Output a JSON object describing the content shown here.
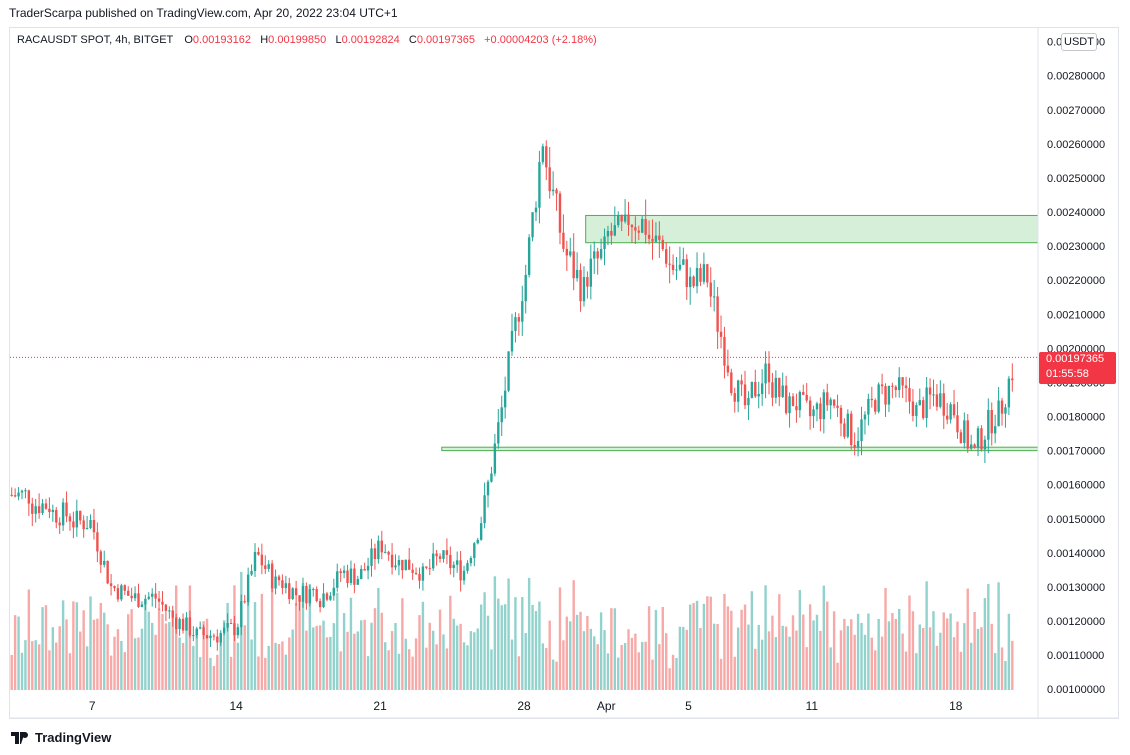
{
  "header": {
    "published": "TraderScarpa published on TradingView.com, Apr 20, 2022 23:04 UTC+1"
  },
  "legend": {
    "symbol": "RACAUSDT SPOT, 4h, BITGET",
    "o_label": "O",
    "o_value": "0.00193162",
    "h_label": "H",
    "h_value": "0.00199850",
    "l_label": "L",
    "l_value": "0.00192824",
    "c_label": "C",
    "c_value": "0.00197365",
    "change": "+0.00004203 (+2.18%)"
  },
  "currency_badge": "USDT",
  "last_price": {
    "price": "0.00197365",
    "countdown": "01:55:58"
  },
  "footer": {
    "brand": "TradingView"
  },
  "colors": {
    "up": "#26a69a",
    "down": "#ef5350",
    "zone_fill": "#d6efd8",
    "zone_border": "#4caf50",
    "price_line": "#f23645"
  },
  "chart_data": {
    "type": "candlestick",
    "symbol": "RACAUSDT",
    "timeframe": "4h",
    "y_axis": {
      "range": [
        0.00098,
        0.00294
      ],
      "tick_values": [
        0.001,
        0.0011,
        0.0012,
        0.0013,
        0.0014,
        0.0015,
        0.0016,
        0.0017,
        0.0018,
        0.0019,
        0.002,
        0.0021,
        0.0022,
        0.0023,
        0.0024,
        0.0025,
        0.0026,
        0.0027,
        0.0028,
        0.0029
      ],
      "tick_labels": [
        "0.00100000",
        "0.00110000",
        "0.00120000",
        "0.00130000",
        "0.00140000",
        "0.00150000",
        "0.00160000",
        "0.00170000",
        "0.00180000",
        "0.00190000",
        "0.00200000",
        "0.00210000",
        "0.00220000",
        "0.00230000",
        "0.00240000",
        "0.00250000",
        "0.00260000",
        "0.00270000",
        "0.00280000",
        "0.00290000"
      ]
    },
    "x_axis": {
      "tick_labels": [
        "7",
        "14",
        "21",
        "28",
        "Apr",
        "5",
        "11",
        "18"
      ],
      "tick_dates": [
        "2022-03-07",
        "2022-03-14",
        "2022-03-21",
        "2022-03-28",
        "2022-04-01",
        "2022-04-05",
        "2022-04-11",
        "2022-04-18"
      ],
      "range": [
        "2022-03-03",
        "2022-04-22"
      ]
    },
    "zones": [
      {
        "name": "resistance",
        "from_date": "2022-03-31",
        "price_low": 0.00231,
        "price_high": 0.00239
      },
      {
        "name": "support",
        "from_date": "2022-03-24",
        "price_low": 0.0017,
        "price_high": 0.00171
      }
    ],
    "current_price": 0.00197365,
    "closes": [
      {
        "date": "2022-03-03",
        "close": 0.00157
      },
      {
        "date": "2022-03-04",
        "close": 0.00154
      },
      {
        "date": "2022-03-05",
        "close": 0.00151
      },
      {
        "date": "2022-03-06",
        "close": 0.00149
      },
      {
        "date": "2022-03-07",
        "close": 0.0013
      },
      {
        "date": "2022-03-08",
        "close": 0.00127
      },
      {
        "date": "2022-03-09",
        "close": 0.00127
      },
      {
        "date": "2022-03-10",
        "close": 0.00121
      },
      {
        "date": "2022-03-11",
        "close": 0.00117
      },
      {
        "date": "2022-03-12",
        "close": 0.00116
      },
      {
        "date": "2022-03-13",
        "close": 0.00118
      },
      {
        "date": "2022-03-14",
        "close": 0.00138
      },
      {
        "date": "2022-03-15",
        "close": 0.00131
      },
      {
        "date": "2022-03-16",
        "close": 0.00128
      },
      {
        "date": "2022-03-17",
        "close": 0.00129
      },
      {
        "date": "2022-03-18",
        "close": 0.00132
      },
      {
        "date": "2022-03-19",
        "close": 0.00133
      },
      {
        "date": "2022-03-20",
        "close": 0.00141
      },
      {
        "date": "2022-03-21",
        "close": 0.00137
      },
      {
        "date": "2022-03-22",
        "close": 0.00135
      },
      {
        "date": "2022-03-23",
        "close": 0.00139
      },
      {
        "date": "2022-03-24",
        "close": 0.00135
      },
      {
        "date": "2022-03-25",
        "close": 0.0015
      },
      {
        "date": "2022-03-26",
        "close": 0.00182
      },
      {
        "date": "2022-03-27",
        "close": 0.00218
      },
      {
        "date": "2022-03-28",
        "close": 0.00262
      },
      {
        "date": "2022-03-29",
        "close": 0.0023
      },
      {
        "date": "2022-03-30",
        "close": 0.00217
      },
      {
        "date": "2022-03-31",
        "close": 0.00228
      },
      {
        "date": "2022-04-01",
        "close": 0.00234
      },
      {
        "date": "2022-04-02",
        "close": 0.00236
      },
      {
        "date": "2022-04-03",
        "close": 0.00228
      },
      {
        "date": "2022-04-04",
        "close": 0.00222
      },
      {
        "date": "2022-04-05",
        "close": 0.00221
      },
      {
        "date": "2022-04-06",
        "close": 0.00196
      },
      {
        "date": "2022-04-07",
        "close": 0.00181
      },
      {
        "date": "2022-04-08",
        "close": 0.00194
      },
      {
        "date": "2022-04-09",
        "close": 0.00183
      },
      {
        "date": "2022-04-10",
        "close": 0.0018
      },
      {
        "date": "2022-04-11",
        "close": 0.00185
      },
      {
        "date": "2022-04-12",
        "close": 0.00175
      },
      {
        "date": "2022-04-13",
        "close": 0.00183
      },
      {
        "date": "2022-04-14",
        "close": 0.00188
      },
      {
        "date": "2022-04-15",
        "close": 0.00184
      },
      {
        "date": "2022-04-16",
        "close": 0.00186
      },
      {
        "date": "2022-04-17",
        "close": 0.00182
      },
      {
        "date": "2022-04-18",
        "close": 0.00169
      },
      {
        "date": "2022-04-19",
        "close": 0.00181
      },
      {
        "date": "2022-04-20",
        "close": 0.00197
      }
    ]
  }
}
